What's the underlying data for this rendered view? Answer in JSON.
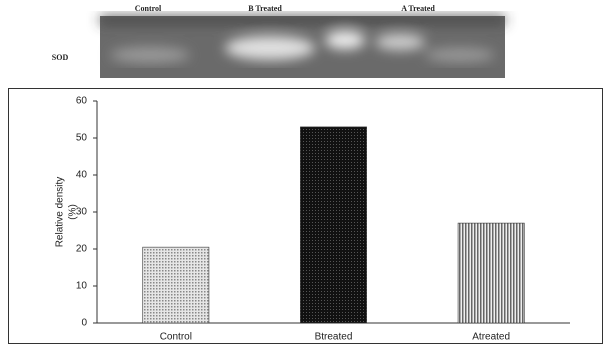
{
  "gel": {
    "lanes": [
      "Control",
      "B Treated",
      "A Treated"
    ],
    "row_label": "SOD"
  },
  "chart_data": {
    "type": "bar",
    "y_label": [
      "Relative density",
      "(%)"
    ],
    "categories": [
      "Control",
      "Btreated",
      "Atreated"
    ],
    "values": [
      20.5,
      53,
      27
    ],
    "ylim": [
      0,
      60
    ],
    "yticks": [
      0,
      10,
      20,
      30,
      40,
      50,
      60
    ]
  }
}
